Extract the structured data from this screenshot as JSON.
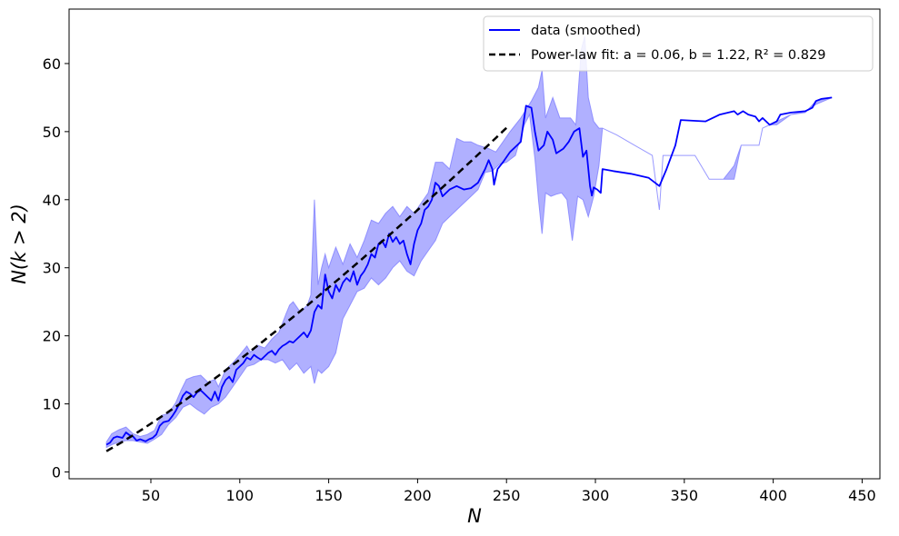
{
  "chart_data": {
    "type": "line",
    "xlabel": "N",
    "ylabel": "N(k > 2)",
    "xlim": [
      4,
      460
    ],
    "ylim": [
      -1,
      68
    ],
    "grid": false,
    "legend_position": "top-right",
    "x_ticks": [
      50,
      100,
      150,
      200,
      250,
      300,
      350,
      400,
      450
    ],
    "y_ticks": [
      0,
      10,
      20,
      30,
      40,
      50,
      60
    ],
    "colors": {
      "series": "#0000ff",
      "band": "#8080ff",
      "fit": "#000000"
    },
    "legend": {
      "smoothed": "data (smoothed)",
      "fit": "Power-law fit: a = 0.06, b = 1.22,  R² = 0.829"
    },
    "fit": {
      "a": 0.06,
      "b": 1.22,
      "r2": 0.829,
      "x_range": [
        25,
        251
      ]
    },
    "series": [
      {
        "name": "data (smoothed)",
        "points": [
          [
            25,
            4.0
          ],
          [
            27,
            4.3
          ],
          [
            29,
            5.0
          ],
          [
            31,
            5.2
          ],
          [
            34,
            5.0
          ],
          [
            36,
            5.8
          ],
          [
            38,
            5.4
          ],
          [
            40,
            5.2
          ],
          [
            42,
            4.6
          ],
          [
            44,
            4.8
          ],
          [
            47,
            4.5
          ],
          [
            49,
            4.8
          ],
          [
            51,
            5.0
          ],
          [
            53,
            5.5
          ],
          [
            55,
            6.8
          ],
          [
            57,
            7.3
          ],
          [
            60,
            7.5
          ],
          [
            62,
            8.2
          ],
          [
            64,
            9.0
          ],
          [
            66,
            10.0
          ],
          [
            68,
            11.2
          ],
          [
            70,
            11.8
          ],
          [
            72,
            11.5
          ],
          [
            74,
            11.0
          ],
          [
            76,
            11.7
          ],
          [
            78,
            12.0
          ],
          [
            80,
            11.5
          ],
          [
            82,
            11.0
          ],
          [
            84,
            10.5
          ],
          [
            86,
            11.8
          ],
          [
            88,
            10.5
          ],
          [
            90,
            12.5
          ],
          [
            92,
            13.5
          ],
          [
            94,
            14.0
          ],
          [
            96,
            13.2
          ],
          [
            98,
            15.0
          ],
          [
            100,
            15.5
          ],
          [
            102,
            16.0
          ],
          [
            104,
            16.8
          ],
          [
            106,
            16.5
          ],
          [
            108,
            17.2
          ],
          [
            110,
            16.8
          ],
          [
            112,
            16.5
          ],
          [
            114,
            17.0
          ],
          [
            116,
            17.5
          ],
          [
            118,
            17.8
          ],
          [
            120,
            17.2
          ],
          [
            122,
            18.0
          ],
          [
            124,
            18.5
          ],
          [
            126,
            18.8
          ],
          [
            128,
            19.2
          ],
          [
            130,
            19.0
          ],
          [
            132,
            19.5
          ],
          [
            134,
            20.0
          ],
          [
            136,
            20.5
          ],
          [
            138,
            19.8
          ],
          [
            140,
            20.8
          ],
          [
            142,
            23.5
          ],
          [
            144,
            24.5
          ],
          [
            146,
            24.0
          ],
          [
            148,
            29.0
          ],
          [
            150,
            26.5
          ],
          [
            152,
            25.5
          ],
          [
            154,
            27.5
          ],
          [
            156,
            26.5
          ],
          [
            158,
            27.8
          ],
          [
            160,
            28.5
          ],
          [
            162,
            28.0
          ],
          [
            164,
            29.5
          ],
          [
            166,
            27.5
          ],
          [
            168,
            28.8
          ],
          [
            170,
            29.5
          ],
          [
            172,
            30.5
          ],
          [
            174,
            32.0
          ],
          [
            176,
            31.5
          ],
          [
            178,
            33.5
          ],
          [
            180,
            34.0
          ],
          [
            182,
            33.0
          ],
          [
            184,
            35.0
          ],
          [
            186,
            33.8
          ],
          [
            188,
            34.5
          ],
          [
            190,
            33.5
          ],
          [
            192,
            34.0
          ],
          [
            194,
            32.0
          ],
          [
            196,
            30.5
          ],
          [
            198,
            33.5
          ],
          [
            200,
            35.5
          ],
          [
            202,
            36.5
          ],
          [
            204,
            38.5
          ],
          [
            206,
            39.0
          ],
          [
            208,
            40.0
          ],
          [
            210,
            42.5
          ],
          [
            212,
            42.0
          ],
          [
            214,
            40.5
          ],
          [
            218,
            41.5
          ],
          [
            222,
            42.0
          ],
          [
            226,
            41.5
          ],
          [
            230,
            41.7
          ],
          [
            234,
            42.5
          ],
          [
            236,
            43.5
          ],
          [
            238,
            44.5
          ],
          [
            240,
            45.8
          ],
          [
            242,
            44.5
          ],
          [
            243,
            42.2
          ],
          [
            245,
            44.5
          ],
          [
            248,
            45.5
          ],
          [
            252,
            47.0
          ],
          [
            258,
            48.5
          ],
          [
            261,
            53.8
          ],
          [
            264,
            53.5
          ],
          [
            266,
            50.0
          ],
          [
            268,
            47.2
          ],
          [
            271,
            48.0
          ],
          [
            273,
            50.0
          ],
          [
            276,
            48.8
          ],
          [
            278,
            46.8
          ],
          [
            282,
            47.5
          ],
          [
            285,
            48.5
          ],
          [
            288,
            50.0
          ],
          [
            291,
            50.5
          ],
          [
            293,
            46.3
          ],
          [
            295,
            47.2
          ],
          [
            297,
            42.0
          ],
          [
            298,
            40.6
          ],
          [
            299,
            41.8
          ],
          [
            301,
            41.5
          ],
          [
            303,
            41.0
          ],
          [
            304,
            44.5
          ],
          [
            310,
            44.2
          ],
          [
            320,
            43.8
          ],
          [
            330,
            43.2
          ],
          [
            336,
            42.0
          ],
          [
            340,
            44.5
          ],
          [
            345,
            48.0
          ],
          [
            348,
            51.7
          ],
          [
            355,
            51.6
          ],
          [
            362,
            51.5
          ],
          [
            370,
            52.5
          ],
          [
            378,
            53.0
          ],
          [
            380,
            52.5
          ],
          [
            383,
            53.0
          ],
          [
            386,
            52.5
          ],
          [
            390,
            52.2
          ],
          [
            392,
            51.5
          ],
          [
            394,
            52.0
          ],
          [
            398,
            51.0
          ],
          [
            402,
            51.5
          ],
          [
            404,
            52.5
          ],
          [
            410,
            52.8
          ],
          [
            418,
            53.0
          ],
          [
            422,
            53.5
          ],
          [
            424,
            54.5
          ],
          [
            427,
            54.8
          ],
          [
            433,
            55.0
          ]
        ]
      }
    ],
    "band": {
      "upper": [
        [
          25,
          4.4
        ],
        [
          28,
          5.6
        ],
        [
          32,
          6.2
        ],
        [
          36,
          6.6
        ],
        [
          40,
          5.6
        ],
        [
          44,
          5.2
        ],
        [
          48,
          5.5
        ],
        [
          52,
          6.1
        ],
        [
          56,
          8.3
        ],
        [
          60,
          8.6
        ],
        [
          64,
          10.2
        ],
        [
          67,
          12.0
        ],
        [
          70,
          13.6
        ],
        [
          74,
          14.0
        ],
        [
          78,
          14.2
        ],
        [
          82,
          13.2
        ],
        [
          86,
          13.6
        ],
        [
          88,
          12.5
        ],
        [
          92,
          15.0
        ],
        [
          96,
          16.0
        ],
        [
          100,
          17.2
        ],
        [
          104,
          18.5
        ],
        [
          106,
          17.6
        ],
        [
          110,
          18.6
        ],
        [
          114,
          18.2
        ],
        [
          118,
          19.5
        ],
        [
          122,
          20.5
        ],
        [
          126,
          23.2
        ],
        [
          128,
          24.5
        ],
        [
          130,
          25.0
        ],
        [
          134,
          23.5
        ],
        [
          138,
          24.5
        ],
        [
          140,
          26.0
        ],
        [
          142,
          40.0
        ],
        [
          144,
          27.5
        ],
        [
          146,
          30.0
        ],
        [
          148,
          32.0
        ],
        [
          150,
          30.0
        ],
        [
          154,
          33.0
        ],
        [
          158,
          30.5
        ],
        [
          162,
          33.5
        ],
        [
          166,
          31.5
        ],
        [
          170,
          34.0
        ],
        [
          174,
          37.0
        ],
        [
          178,
          36.5
        ],
        [
          182,
          38.0
        ],
        [
          186,
          39.0
        ],
        [
          190,
          37.5
        ],
        [
          194,
          39.0
        ],
        [
          198,
          38.0
        ],
        [
          202,
          39.5
        ],
        [
          206,
          41.0
        ],
        [
          210,
          45.5
        ],
        [
          214,
          45.5
        ],
        [
          218,
          44.5
        ],
        [
          222,
          49.0
        ],
        [
          226,
          48.5
        ],
        [
          230,
          48.5
        ],
        [
          234,
          48.0
        ],
        [
          240,
          47.5
        ],
        [
          244,
          47.0
        ],
        [
          248,
          48.5
        ],
        [
          252,
          50.0
        ],
        [
          258,
          52.0
        ],
        [
          264,
          54.5
        ],
        [
          268,
          56.5
        ],
        [
          270,
          59.0
        ],
        [
          272,
          52.0
        ],
        [
          276,
          55.0
        ],
        [
          280,
          52.0
        ],
        [
          286,
          52.0
        ],
        [
          289,
          51.0
        ],
        [
          292,
          62.0
        ],
        [
          294,
          64.0
        ],
        [
          296,
          55.0
        ],
        [
          299,
          51.5
        ],
        [
          302,
          50.5
        ],
        [
          304,
          50.5
        ],
        [
          312,
          49.5
        ],
        [
          322,
          48.0
        ],
        [
          332,
          46.5
        ],
        [
          336,
          38.5
        ],
        [
          338,
          46.5
        ],
        [
          346,
          46.5
        ],
        [
          356,
          46.5
        ],
        [
          364,
          43.0
        ],
        [
          372,
          43.0
        ],
        [
          378,
          43.0
        ],
        [
          382,
          48.0
        ],
        [
          392,
          48.0
        ],
        [
          394,
          50.5
        ],
        [
          398,
          51.0
        ],
        [
          402,
          51.5
        ],
        [
          410,
          52.5
        ],
        [
          418,
          52.8
        ],
        [
          424,
          54.5
        ],
        [
          433,
          55.0
        ]
      ],
      "lower": [
        [
          433,
          55.0
        ],
        [
          424,
          54.0
        ],
        [
          418,
          53.0
        ],
        [
          410,
          52.5
        ],
        [
          402,
          51.0
        ],
        [
          398,
          51.0
        ],
        [
          394,
          50.5
        ],
        [
          392,
          48.0
        ],
        [
          382,
          48.0
        ],
        [
          378,
          45.0
        ],
        [
          372,
          43.0
        ],
        [
          364,
          43.0
        ],
        [
          356,
          46.5
        ],
        [
          346,
          46.5
        ],
        [
          338,
          46.5
        ],
        [
          336,
          38.5
        ],
        [
          332,
          46.5
        ],
        [
          322,
          48.0
        ],
        [
          312,
          49.5
        ],
        [
          304,
          50.5
        ],
        [
          302,
          45.0
        ],
        [
          299,
          40.5
        ],
        [
          296,
          37.5
        ],
        [
          293,
          40.0
        ],
        [
          290,
          40.5
        ],
        [
          287,
          34.0
        ],
        [
          284,
          40.0
        ],
        [
          281,
          41.0
        ],
        [
          278,
          40.8
        ],
        [
          275,
          40.5
        ],
        [
          272,
          41.0
        ],
        [
          270,
          35.0
        ],
        [
          268,
          40.0
        ],
        [
          266,
          46.0
        ],
        [
          263,
          52.5
        ],
        [
          260,
          51.0
        ],
        [
          255,
          46.5
        ],
        [
          250,
          45.5
        ],
        [
          246,
          45.2
        ],
        [
          242,
          44.2
        ],
        [
          238,
          44.0
        ],
        [
          234,
          41.5
        ],
        [
          230,
          40.5
        ],
        [
          226,
          39.5
        ],
        [
          222,
          38.5
        ],
        [
          218,
          37.5
        ],
        [
          214,
          36.5
        ],
        [
          210,
          34.0
        ],
        [
          206,
          32.5
        ],
        [
          202,
          31.0
        ],
        [
          198,
          28.8
        ],
        [
          194,
          29.5
        ],
        [
          190,
          31.0
        ],
        [
          186,
          30.0
        ],
        [
          182,
          28.5
        ],
        [
          178,
          27.5
        ],
        [
          174,
          28.5
        ],
        [
          170,
          27.0
        ],
        [
          166,
          26.5
        ],
        [
          162,
          24.5
        ],
        [
          158,
          22.5
        ],
        [
          154,
          17.5
        ],
        [
          150,
          15.5
        ],
        [
          148,
          15.0
        ],
        [
          146,
          14.5
        ],
        [
          144,
          15.0
        ],
        [
          142,
          13.0
        ],
        [
          140,
          15.5
        ],
        [
          136,
          14.5
        ],
        [
          132,
          16.0
        ],
        [
          128,
          15.0
        ],
        [
          124,
          16.5
        ],
        [
          120,
          16.0
        ],
        [
          116,
          16.5
        ],
        [
          112,
          16.5
        ],
        [
          108,
          15.8
        ],
        [
          104,
          15.5
        ],
        [
          100,
          14.0
        ],
        [
          96,
          12.5
        ],
        [
          92,
          11.0
        ],
        [
          88,
          10.0
        ],
        [
          84,
          9.5
        ],
        [
          80,
          8.5
        ],
        [
          76,
          9.2
        ],
        [
          72,
          10.0
        ],
        [
          68,
          9.5
        ],
        [
          64,
          8.0
        ],
        [
          60,
          7.0
        ],
        [
          56,
          5.5
        ],
        [
          52,
          4.8
        ],
        [
          48,
          4.2
        ],
        [
          44,
          4.4
        ],
        [
          40,
          4.6
        ],
        [
          36,
          4.6
        ],
        [
          32,
          4.4
        ],
        [
          28,
          4.0
        ],
        [
          25,
          3.6
        ]
      ]
    }
  }
}
